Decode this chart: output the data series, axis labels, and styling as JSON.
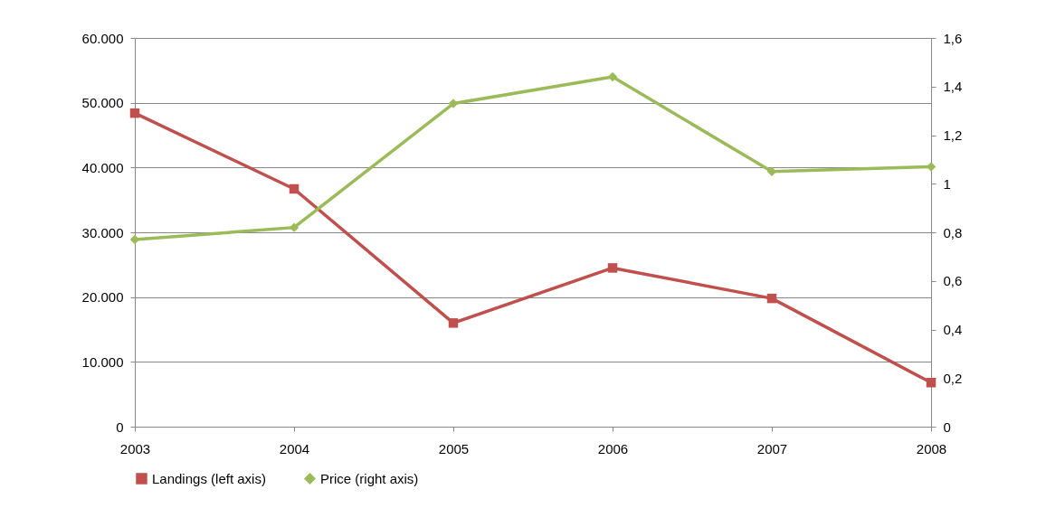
{
  "chart_data": {
    "type": "line",
    "categories": [
      "2003",
      "2004",
      "2005",
      "2006",
      "2007",
      "2008"
    ],
    "series": [
      {
        "name": "Landings (left axis)",
        "color": "#c0504d",
        "marker": "square",
        "values": [
          48400,
          36700,
          16000,
          24500,
          19800,
          6800
        ]
      },
      {
        "name": "Price (right axis)",
        "color": "#9bbb59",
        "marker": "diamond",
        "axis": "y2",
        "values": [
          0.77,
          0.82,
          1.33,
          1.44,
          1.05,
          1.07
        ]
      }
    ],
    "ylim": [
      0,
      60000
    ],
    "yticks": [
      0,
      {
        "value": 10000,
        "label": "10.000"
      },
      {
        "value": 20000,
        "label": "20.000"
      },
      {
        "value": 30000,
        "label": "30.000"
      },
      {
        "value": 40000,
        "label": "40.000"
      },
      {
        "value": 50000,
        "label": "50.000"
      },
      {
        "value": 60000,
        "label": "60.000"
      }
    ],
    "y2lim": [
      0,
      1.6
    ],
    "y2ticks": [
      0,
      {
        "value": 0.2,
        "label": "0,2"
      },
      {
        "value": 0.4,
        "label": "0,4"
      },
      {
        "value": 0.6,
        "label": "0,6"
      },
      {
        "value": 0.8,
        "label": "0,8"
      },
      1,
      {
        "value": 1.2,
        "label": "1,2"
      },
      {
        "value": 1.4,
        "label": "1,4"
      },
      {
        "value": 1.6,
        "label": "1,6"
      }
    ],
    "grid": "y",
    "legend": "bottom",
    "line_style": "solid"
  }
}
